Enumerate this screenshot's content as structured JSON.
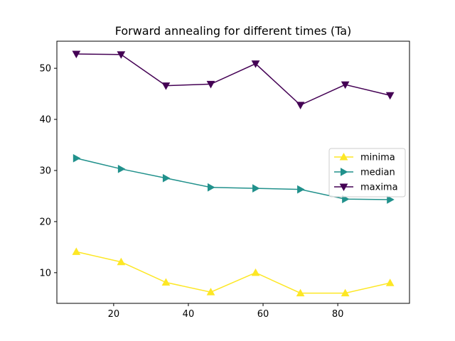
{
  "chart_data": {
    "type": "line",
    "title": "Forward annealing for different times (Ta)",
    "xlabel": "",
    "ylabel": "",
    "x": [
      10,
      22,
      34,
      46,
      58,
      70,
      82,
      94
    ],
    "xlim": [
      4.8,
      99.2
    ],
    "ylim": [
      4.0,
      55.3
    ],
    "xticks": [
      20,
      40,
      60,
      80
    ],
    "yticks": [
      10,
      20,
      30,
      40,
      50
    ],
    "grid": false,
    "legend_position": "center-right",
    "series": [
      {
        "name": "minima",
        "color": "#fde725",
        "marker": "triangle-up",
        "values": [
          14.1,
          12.1,
          8.1,
          6.2,
          10.0,
          6.0,
          6.0,
          8.0
        ]
      },
      {
        "name": "median",
        "color": "#21918c",
        "marker": "triangle-right",
        "values": [
          32.4,
          30.3,
          28.5,
          26.7,
          26.5,
          26.3,
          24.4,
          24.3
        ]
      },
      {
        "name": "maxima",
        "color": "#440154",
        "marker": "triangle-down",
        "values": [
          52.8,
          52.7,
          46.6,
          46.9,
          50.9,
          42.8,
          46.8,
          44.7
        ]
      }
    ]
  }
}
